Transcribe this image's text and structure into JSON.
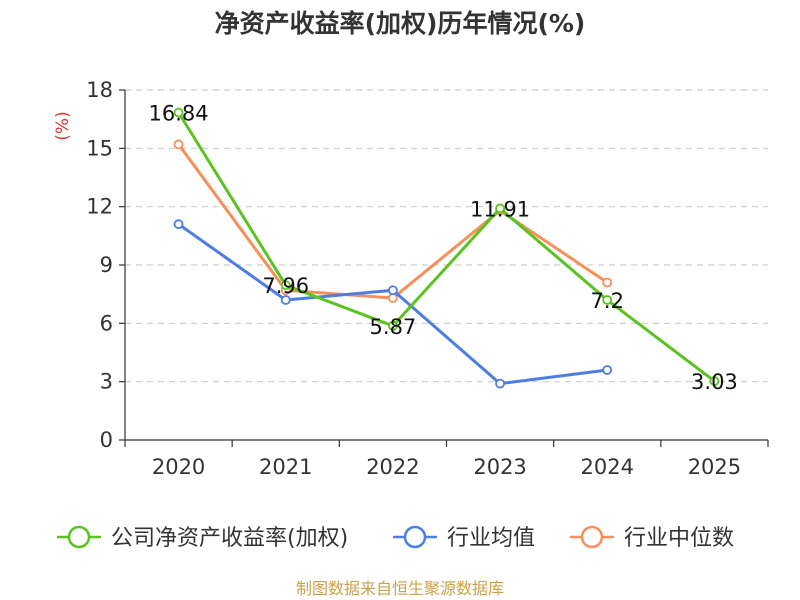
{
  "chart_data": {
    "type": "line",
    "title": "净资产收益率(加权)历年情况(%)",
    "ylabel": "(%)",
    "xlabel": "",
    "categories": [
      "2020",
      "2021",
      "2022",
      "2023",
      "2024",
      "2025"
    ],
    "ylim": [
      0,
      18
    ],
    "yticks": [
      0,
      3,
      6,
      9,
      12,
      15,
      18
    ],
    "grid": true,
    "legend_position": "bottom",
    "series": [
      {
        "name": "公司净资产收益率(加权)",
        "color": "#5bc21e",
        "values": [
          16.84,
          7.96,
          5.87,
          11.91,
          7.2,
          3.03
        ],
        "show_labels": true
      },
      {
        "name": "行业均值",
        "color": "#4a7ee0",
        "values": [
          11.1,
          7.2,
          7.7,
          2.9,
          3.6,
          null
        ],
        "show_labels": false
      },
      {
        "name": "行业中位数",
        "color": "#f5905a",
        "values": [
          15.2,
          7.7,
          7.3,
          11.8,
          8.1,
          null
        ],
        "show_labels": false
      }
    ],
    "data_labels": [
      "16.84",
      "7.96",
      "5.87",
      "11.91",
      "7.2",
      "3.03"
    ]
  },
  "source_text": "制图数据来自恒生聚源数据库",
  "colors": {
    "unit_label": "#e0312f",
    "source_text": "#c9a14a",
    "axis": "#333333",
    "grid": "#cccccc"
  }
}
